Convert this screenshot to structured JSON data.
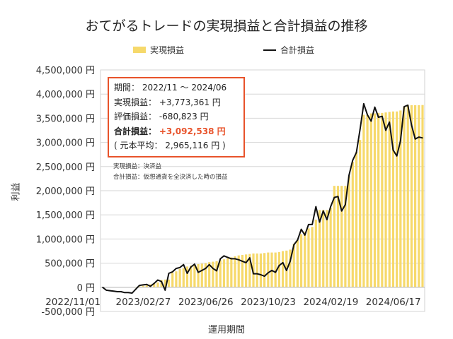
{
  "chart_data": {
    "type": "bar+line",
    "title": "おてがるトレードの実現損益と合計損益の推移",
    "xlabel": "運用期間",
    "ylabel": "利益",
    "ylim": [
      -500000,
      4500000
    ],
    "yticks": [
      "4,500,000 円",
      "4,000,000 円",
      "3,500,000 円",
      "3,000,000 円",
      "2,500,000 円",
      "2,000,000 円",
      "1,500,000 円",
      "1,000,000 円",
      "500,000 円",
      "0 円",
      "-500,000 円"
    ],
    "ytick_values": [
      4500000,
      4000000,
      3500000,
      3000000,
      2500000,
      2000000,
      1500000,
      1000000,
      500000,
      0,
      -500000
    ],
    "xticks": [
      "2022/11/01",
      "2023/02/27",
      "2023/06/26",
      "2023/10/23",
      "2024/02/19",
      "2024/06/17"
    ],
    "grid": true,
    "legend_position": "top",
    "colors": {
      "bar": "#f6d96b",
      "line": "#111111",
      "box_border": "#e8532b"
    },
    "x": [
      "2022/10/31",
      "2022/11/07",
      "2022/11/14",
      "2022/11/21",
      "2022/11/28",
      "2022/12/05",
      "2022/12/12",
      "2022/12/19",
      "2022/12/26",
      "2023/01/02",
      "2023/01/09",
      "2023/01/16",
      "2023/01/23",
      "2023/01/30",
      "2023/02/06",
      "2023/02/13",
      "2023/02/20",
      "2023/02/27",
      "2023/03/06",
      "2023/03/13",
      "2023/03/20",
      "2023/03/27",
      "2023/04/03",
      "2023/04/10",
      "2023/04/17",
      "2023/04/24",
      "2023/05/01",
      "2023/05/08",
      "2023/05/15",
      "2023/05/22",
      "2023/05/29",
      "2023/06/05",
      "2023/06/12",
      "2023/06/19",
      "2023/06/26",
      "2023/07/03",
      "2023/07/10",
      "2023/07/17",
      "2023/07/24",
      "2023/07/31",
      "2023/08/07",
      "2023/08/14",
      "2023/08/21",
      "2023/08/28",
      "2023/09/04",
      "2023/09/11",
      "2023/09/18",
      "2023/09/25",
      "2023/10/02",
      "2023/10/09",
      "2023/10/16",
      "2023/10/23",
      "2023/10/30",
      "2023/11/06",
      "2023/11/13",
      "2023/11/20",
      "2023/11/27",
      "2023/12/04",
      "2023/12/11",
      "2023/12/18",
      "2023/12/25",
      "2024/01/01",
      "2024/01/08",
      "2024/01/15",
      "2024/01/22",
      "2024/01/29",
      "2024/02/05",
      "2024/02/12",
      "2024/02/19",
      "2024/02/26",
      "2024/03/04",
      "2024/03/11",
      "2024/03/18",
      "2024/03/25",
      "2024/04/01",
      "2024/04/08",
      "2024/04/15",
      "2024/04/22",
      "2024/04/29",
      "2024/05/06",
      "2024/05/13",
      "2024/05/20",
      "2024/05/27",
      "2024/06/03",
      "2024/06/10",
      "2024/06/17",
      "2024/06/24",
      "2024/07/01"
    ],
    "series": [
      {
        "name": "実現損益",
        "type": "bar",
        "values": [
          0,
          0,
          0,
          0,
          0,
          0,
          0,
          0,
          0,
          10000,
          20000,
          30000,
          40000,
          60000,
          80000,
          100000,
          150000,
          160000,
          160000,
          300000,
          330000,
          380000,
          400000,
          430000,
          450000,
          470000,
          480000,
          490000,
          500000,
          520000,
          530000,
          540000,
          560000,
          580000,
          600000,
          620000,
          640000,
          660000,
          670000,
          680000,
          690000,
          700000,
          700000,
          700000,
          710000,
          720000,
          720000,
          720000,
          730000,
          750000,
          760000,
          780000,
          900000,
          980000,
          1100000,
          1150000,
          1220000,
          1250000,
          1400000,
          1600000,
          1600000,
          1600000,
          1650000,
          2100000,
          2100000,
          2100000,
          2100000,
          2300000,
          2600000,
          2800000,
          3050000,
          3570000,
          3570000,
          3600000,
          3600000,
          3610000,
          3610000,
          3620000,
          3630000,
          3640000,
          3640000,
          3660000,
          3740000,
          3770000,
          3770000,
          3770000,
          3770000,
          3773361
        ]
      },
      {
        "name": "合計損益",
        "type": "line",
        "values": [
          0,
          -60000,
          -70000,
          -80000,
          -90000,
          -90000,
          -110000,
          -110000,
          -120000,
          -40000,
          40000,
          50000,
          60000,
          20000,
          80000,
          150000,
          120000,
          -60000,
          290000,
          320000,
          390000,
          410000,
          470000,
          290000,
          420000,
          480000,
          310000,
          350000,
          390000,
          470000,
          390000,
          340000,
          590000,
          650000,
          620000,
          590000,
          590000,
          570000,
          540000,
          510000,
          610000,
          280000,
          280000,
          260000,
          230000,
          300000,
          350000,
          310000,
          450000,
          510000,
          350000,
          540000,
          880000,
          980000,
          1200000,
          1080000,
          1300000,
          1300000,
          1670000,
          1350000,
          1580000,
          1400000,
          1670000,
          1860000,
          1880000,
          1580000,
          1710000,
          2320000,
          2630000,
          2790000,
          3270000,
          3800000,
          3570000,
          3440000,
          3730000,
          3520000,
          3540000,
          3250000,
          3420000,
          2840000,
          2720000,
          3030000,
          3740000,
          3770000,
          3360000,
          3070000,
          3110000,
          3092538
        ]
      }
    ]
  },
  "legend": {
    "bar_label": "実現損益",
    "line_label": "合計損益"
  },
  "infobox": {
    "period_label": "期間：",
    "period_value": "2022/11 ～ 2024/06",
    "realized_label": "実現損益：",
    "realized_value": "+3,773,361 円",
    "unrealized_label": "評価損益：",
    "unrealized_value": "-680,823 円",
    "total_label": "合計損益：",
    "total_value": "+3,092,538 円",
    "principal_text": "( 元本平均： 2,965,116 円 )"
  },
  "notes": [
    "実現損益：決済益",
    "合計損益：仮想通貨を全決済した時の損益"
  ]
}
